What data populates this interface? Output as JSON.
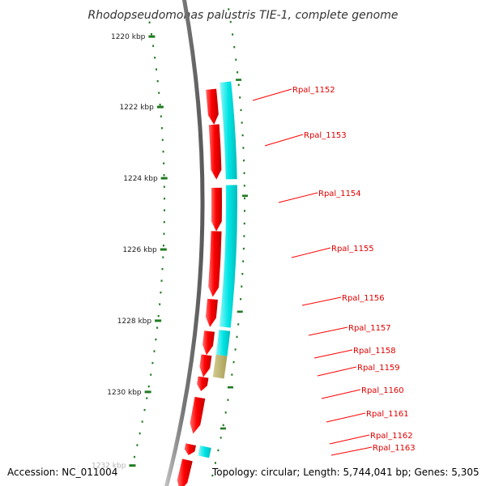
{
  "title": "Rhodopseudomonas palustris TIE-1, complete genome",
  "accession": "Accession: NC_011004",
  "summary": "Topology: circular; Length: 5,744,041 bp; Genes: 5,305",
  "scale": {
    "unit": "kbp",
    "ticks": [
      {
        "label": "1220 kbp"
      },
      {
        "label": "1222 kbp"
      },
      {
        "label": "1224 kbp"
      },
      {
        "label": "1226 kbp"
      },
      {
        "label": "1228 kbp"
      },
      {
        "label": "1230 kbp"
      },
      {
        "label": "1232 kbp"
      }
    ]
  },
  "genes": [
    {
      "label": "Rpal_1152"
    },
    {
      "label": "Rpal_1153"
    },
    {
      "label": "Rpal_1154"
    },
    {
      "label": "Rpal_1155"
    },
    {
      "label": "Rpal_1156"
    },
    {
      "label": "Rpal_1157"
    },
    {
      "label": "Rpal_1158"
    },
    {
      "label": "Rpal_1159"
    },
    {
      "label": "Rpal_1160"
    },
    {
      "label": "Rpal_1161"
    },
    {
      "label": "Rpal_1162"
    },
    {
      "label": "Rpal_1163"
    }
  ],
  "colors": {
    "cds": "#ff0000",
    "cds_light": "#ff6a6a",
    "cds_dark": "#b40000",
    "rna": "#00e5e5",
    "rna_light": "#7ff5f5",
    "other": "#b8ae6a",
    "backbone": "#808080",
    "backbone_light": "#c8c8c8",
    "tick": "#1f7a1f"
  }
}
